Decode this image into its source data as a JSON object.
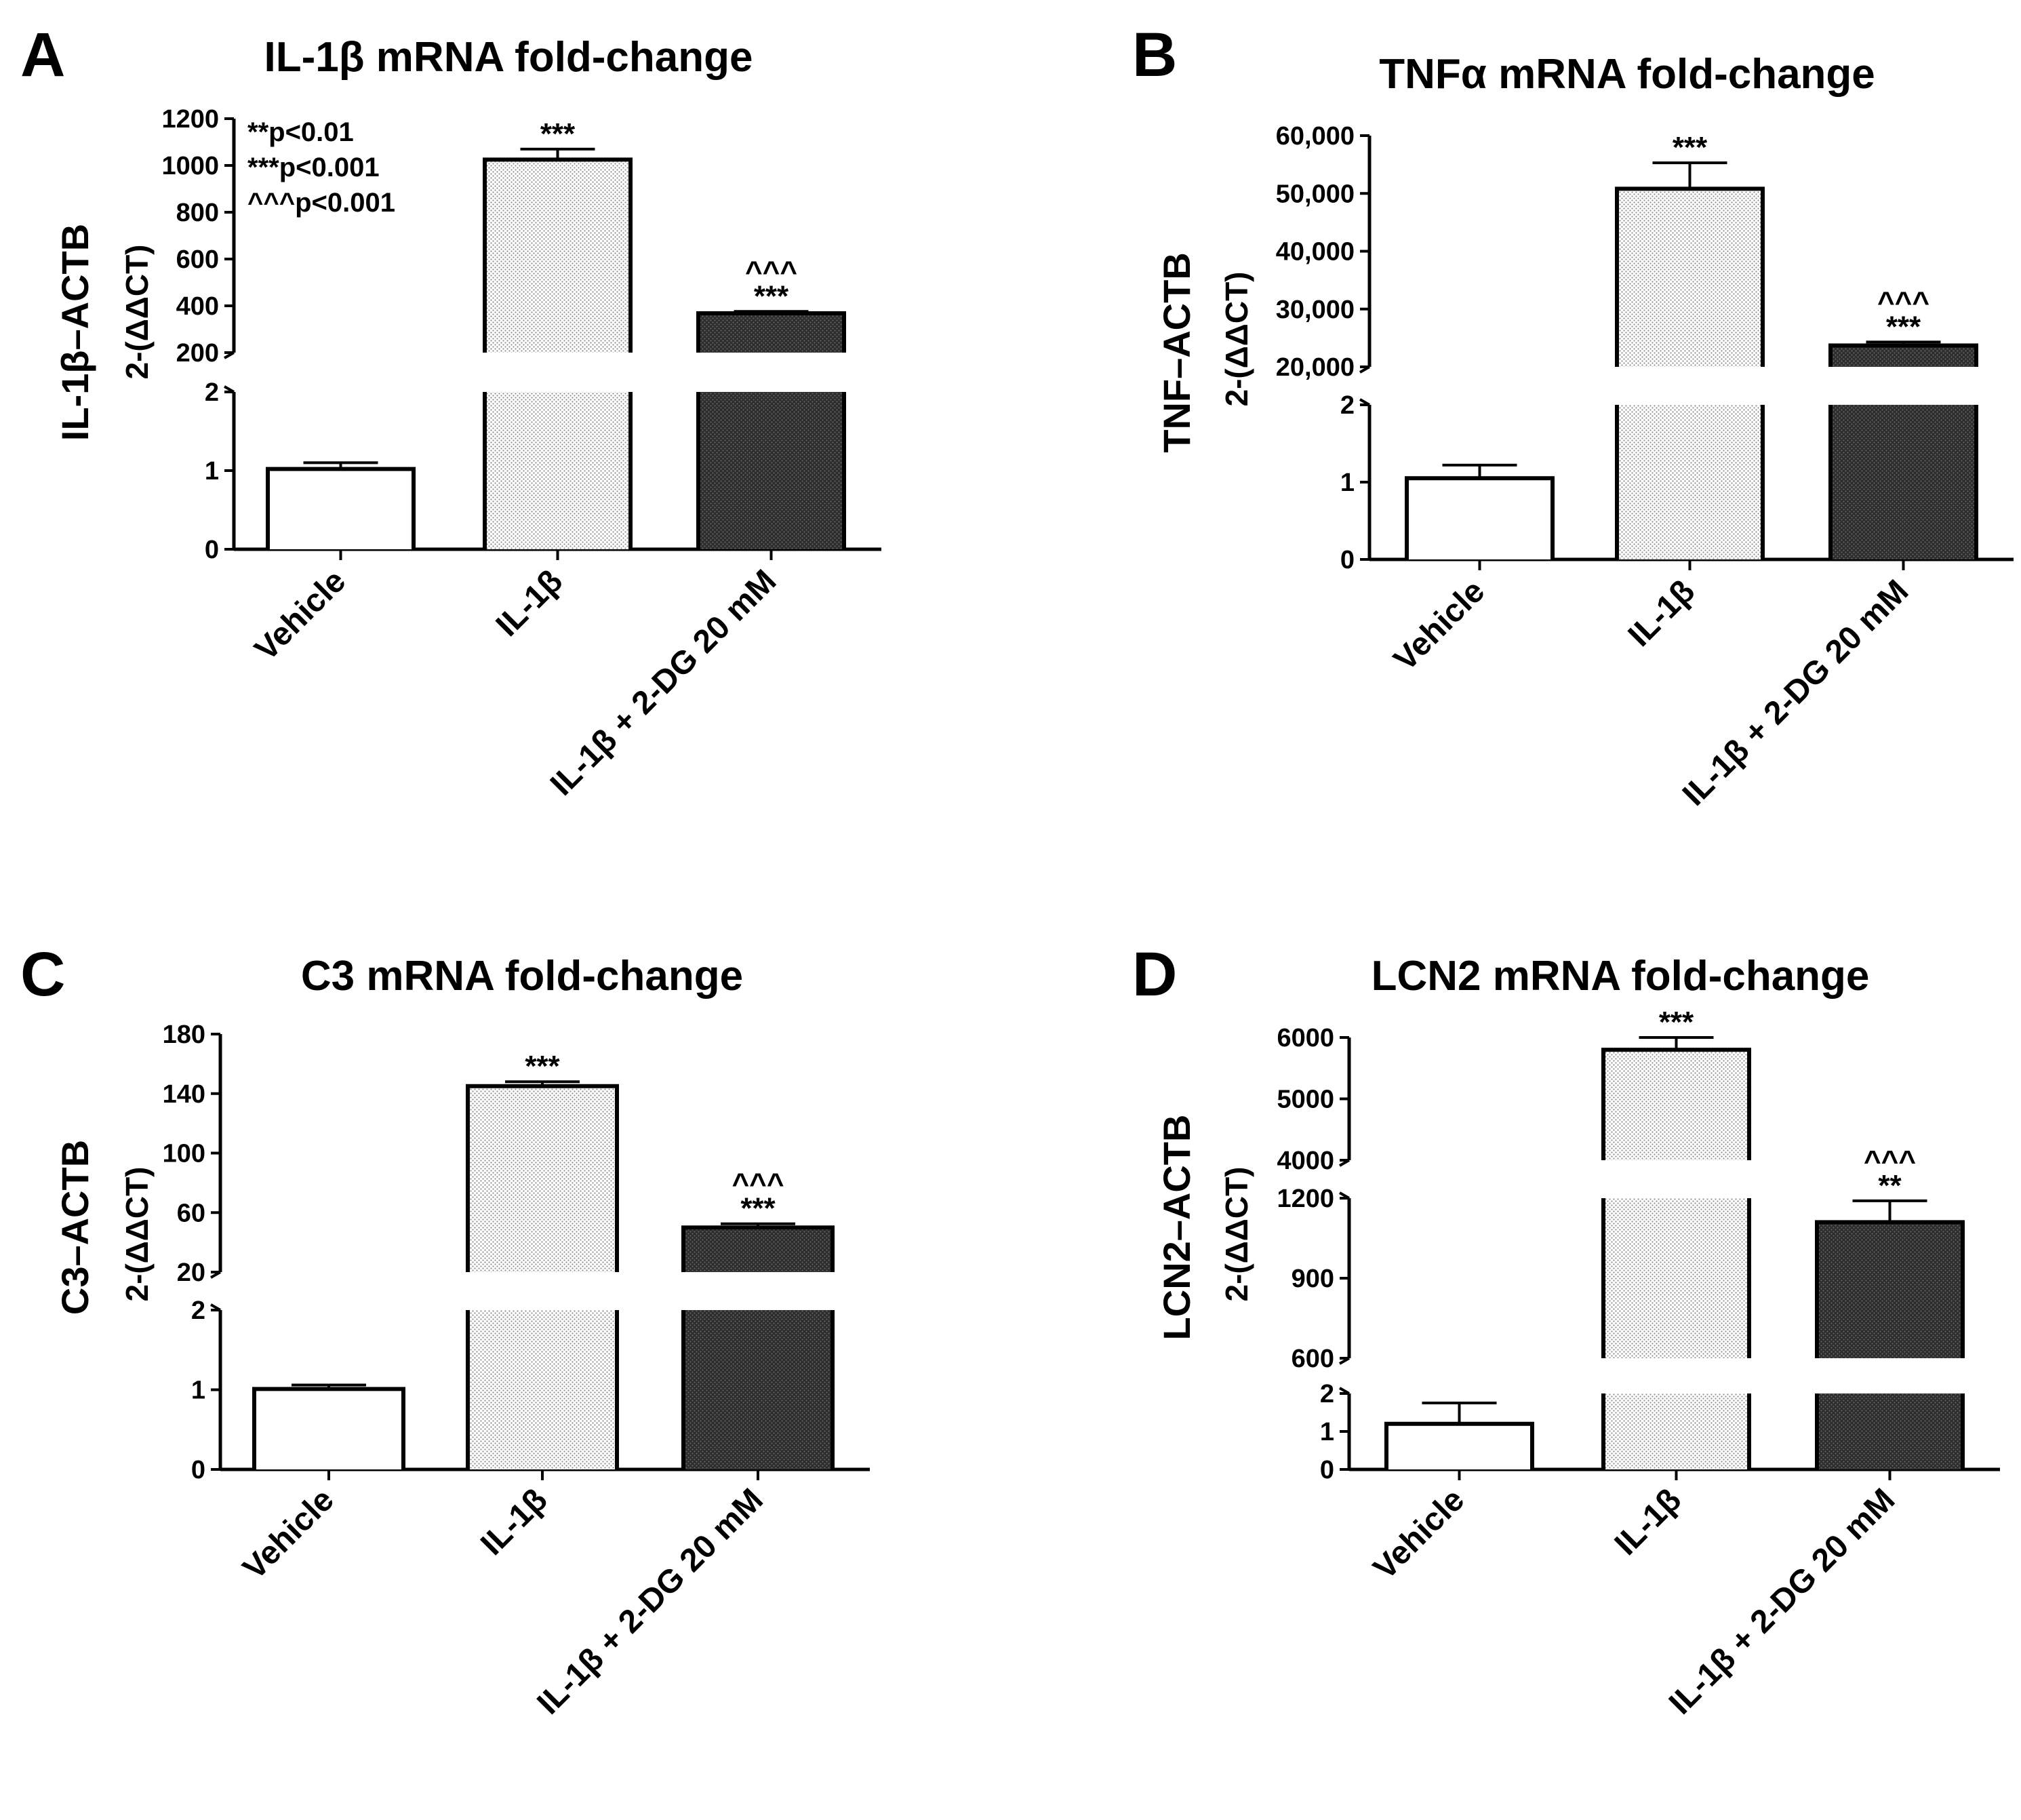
{
  "patterns": {
    "vehicle": "#ffffff",
    "il1b": "#d8d8d8",
    "il1b_2dg": "#2e2e2e"
  },
  "chart_data": [
    {
      "type": "bar",
      "panel": "A",
      "title": "IL-1β mRNA fold-change",
      "ylabel": "IL-1β–ACTB",
      "ylabel_sub": "2-(ΔΔCT)",
      "categories": [
        "Vehicle",
        "IL-1β",
        "IL-1β + 2-DG 20 mM"
      ],
      "values": [
        1.02,
        1025,
        368
      ],
      "errors": [
        0.08,
        45,
        8
      ],
      "significance": [
        [],
        [
          "***"
        ],
        [
          "^^^",
          "***"
        ]
      ],
      "notes": [
        "**p<0.01",
        "***p<0.001",
        "^^^p<0.001"
      ],
      "segments": [
        {
          "range": [
            0,
            2
          ],
          "ticks": [
            {
              "v": 0,
              "label": "0"
            },
            {
              "v": 1,
              "label": "1"
            },
            {
              "v": 2,
              "label": "2"
            }
          ]
        },
        {
          "range": [
            200,
            1200
          ],
          "ticks": [
            {
              "v": 200,
              "label": "200"
            },
            {
              "v": 400,
              "label": "400"
            },
            {
              "v": 600,
              "label": "600"
            },
            {
              "v": 800,
              "label": "800"
            },
            {
              "v": 1000,
              "label": "1000"
            },
            {
              "v": 1200,
              "label": "1200"
            }
          ]
        }
      ]
    },
    {
      "type": "bar",
      "panel": "B",
      "title": "TNFα mRNA fold-change",
      "ylabel": "TNF–ACTB",
      "ylabel_sub": "2-(ΔΔCT)",
      "categories": [
        "Vehicle",
        "IL-1β",
        "IL-1β + 2-DG 20 mM"
      ],
      "values": [
        1.05,
        50800,
        23700
      ],
      "errors": [
        0.17,
        4500,
        600
      ],
      "significance": [
        [],
        [
          "***"
        ],
        [
          "^^^",
          "***"
        ]
      ],
      "notes": [],
      "segments": [
        {
          "range": [
            0,
            2
          ],
          "ticks": [
            {
              "v": 0,
              "label": "0"
            },
            {
              "v": 1,
              "label": "1"
            },
            {
              "v": 2,
              "label": "2"
            }
          ]
        },
        {
          "range": [
            20000,
            60000
          ],
          "ticks": [
            {
              "v": 20000,
              "label": "20,000"
            },
            {
              "v": 30000,
              "label": "30,000"
            },
            {
              "v": 40000,
              "label": "40,000"
            },
            {
              "v": 50000,
              "label": "50,000"
            },
            {
              "v": 60000,
              "label": "60,000"
            }
          ]
        }
      ]
    },
    {
      "type": "bar",
      "panel": "C",
      "title": "C3 mRNA fold-change",
      "ylabel": "C3–ACTB",
      "ylabel_sub": "2-(ΔΔCT)",
      "categories": [
        "Vehicle",
        "IL-1β",
        "IL-1β + 2-DG 20 mM"
      ],
      "values": [
        1.01,
        145,
        50
      ],
      "errors": [
        0.05,
        3,
        2.5
      ],
      "significance": [
        [],
        [
          "***"
        ],
        [
          "^^^",
          "***"
        ]
      ],
      "notes": [],
      "segments": [
        {
          "range": [
            0,
            2
          ],
          "ticks": [
            {
              "v": 0,
              "label": "0"
            },
            {
              "v": 1,
              "label": "1"
            },
            {
              "v": 2,
              "label": "2"
            }
          ]
        },
        {
          "range": [
            20,
            180
          ],
          "ticks": [
            {
              "v": 20,
              "label": "20"
            },
            {
              "v": 60,
              "label": "60"
            },
            {
              "v": 100,
              "label": "100"
            },
            {
              "v": 140,
              "label": "140"
            },
            {
              "v": 180,
              "label": "180"
            }
          ]
        }
      ]
    },
    {
      "type": "bar",
      "panel": "D",
      "title": "LCN2 mRNA fold-change",
      "ylabel": "LCN2–ACTB",
      "ylabel_sub": "2-(ΔΔCT)",
      "categories": [
        "Vehicle",
        "IL-1β",
        "IL-1β + 2-DG 20 mM"
      ],
      "values": [
        1.2,
        5800,
        1110
      ],
      "errors": [
        0.55,
        200,
        80
      ],
      "significance": [
        [],
        [
          "***"
        ],
        [
          "^^^",
          "**"
        ]
      ],
      "notes": [],
      "segments": [
        {
          "range": [
            0,
            2
          ],
          "ticks": [
            {
              "v": 0,
              "label": "0"
            },
            {
              "v": 1,
              "label": "1"
            },
            {
              "v": 2,
              "label": "2"
            }
          ]
        },
        {
          "range": [
            600,
            1200
          ],
          "ticks": [
            {
              "v": 600,
              "label": "600"
            },
            {
              "v": 900,
              "label": "900"
            },
            {
              "v": 1200,
              "label": "1200"
            }
          ]
        },
        {
          "range": [
            4000,
            6000
          ],
          "ticks": [
            {
              "v": 4000,
              "label": "4000"
            },
            {
              "v": 5000,
              "label": "5000"
            },
            {
              "v": 6000,
              "label": "6000"
            }
          ]
        }
      ]
    }
  ]
}
